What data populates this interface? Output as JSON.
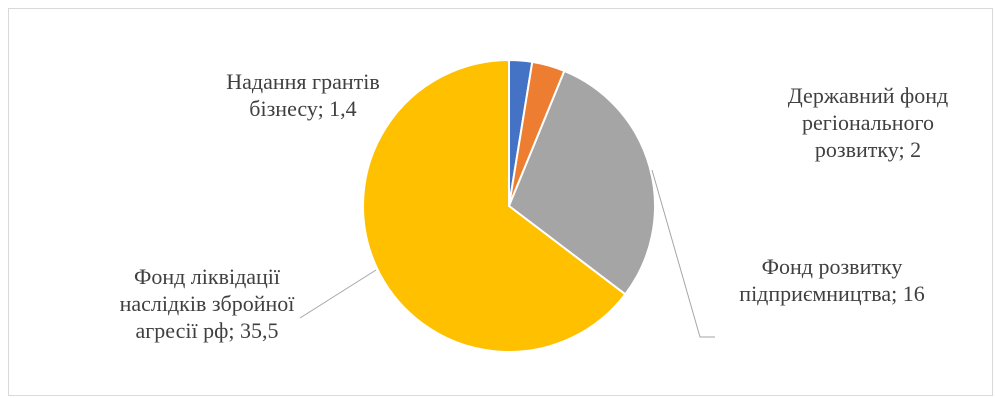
{
  "chart_data": {
    "type": "pie",
    "start_angle_deg": 0,
    "direction": "clockwise",
    "slices": [
      {
        "label_lines": [
          "Надання грантів",
          "бізнесу; 1,4"
        ],
        "value": 1.4,
        "color": "#4472C4"
      },
      {
        "label_lines": [
          "Державний фонд",
          "регіонального",
          "розвитку; 2"
        ],
        "value": 2,
        "color": "#ED7D31"
      },
      {
        "label_lines": [
          "Фонд розвитку",
          "підприємництва; 16"
        ],
        "value": 16,
        "color": "#A5A5A5"
      },
      {
        "label_lines": [
          "Фонд ліквідації",
          "наслідків збройної",
          "агресії рф; 35,5"
        ],
        "value": 35.5,
        "color": "#FFC000"
      }
    ],
    "leader_line_color": "#A6A6A6",
    "slice_border_color": "#FFFFFF",
    "legend": "none"
  }
}
